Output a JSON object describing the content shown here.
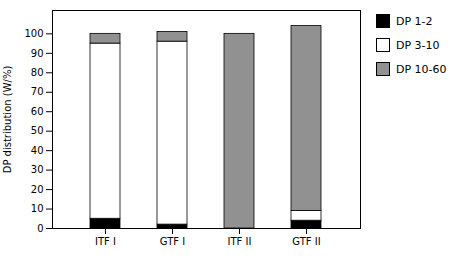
{
  "chart_data": {
    "type": "bar",
    "stacked": true,
    "categories": [
      "ITF I",
      "GTF I",
      "ITF II",
      "GTF II"
    ],
    "series": [
      {
        "name": "DP 1-2",
        "color": "#000000",
        "values": [
          5,
          2,
          0,
          4
        ]
      },
      {
        "name": "DP 3-10",
        "color": "#ffffff",
        "values": [
          90,
          94,
          0,
          5
        ]
      },
      {
        "name": "DP 10-60",
        "color": "#919191",
        "values": [
          5,
          5,
          100,
          95
        ]
      }
    ],
    "ylabel": "DP distribution (W/%)",
    "ylim": [
      0,
      112
    ],
    "yticks": [
      0,
      10,
      20,
      30,
      40,
      50,
      60,
      70,
      80,
      90,
      100
    ],
    "grid": false,
    "legend": "right"
  }
}
